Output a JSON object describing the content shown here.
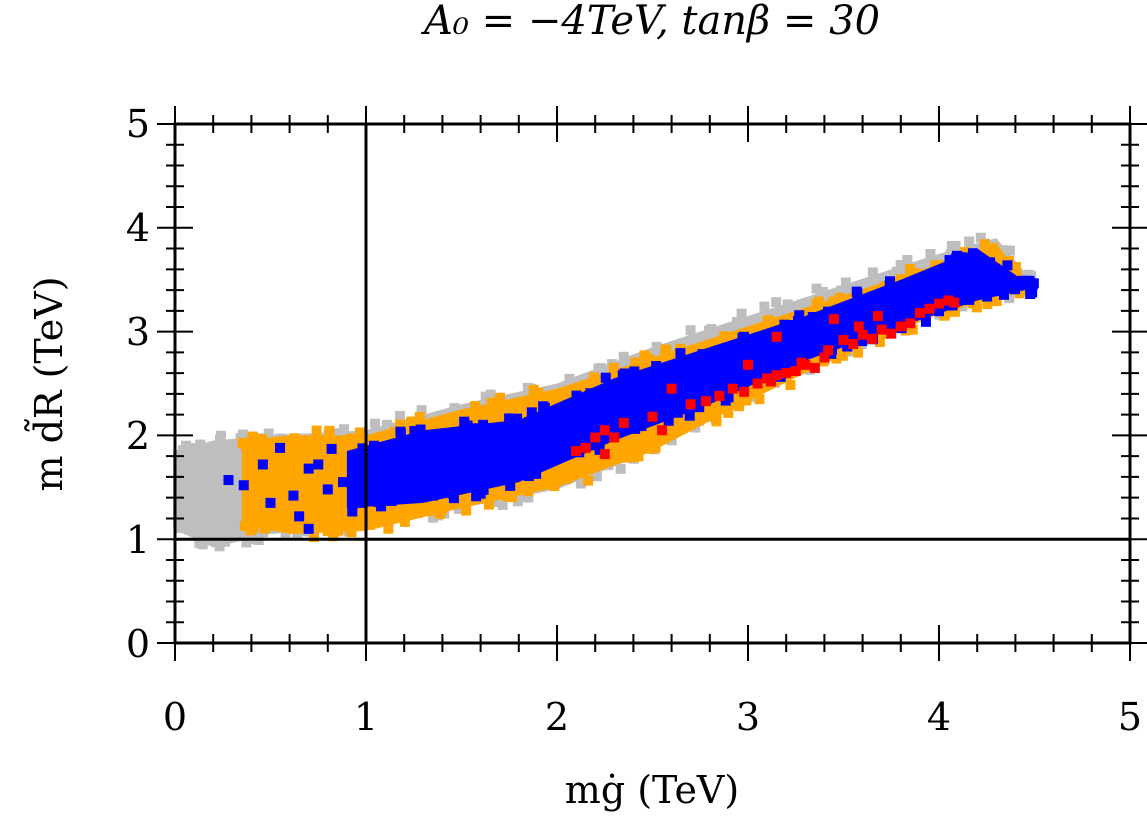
{
  "chart_data": {
    "type": "scatter",
    "title": "A₀ = −4TeV, tanβ = 30",
    "xlabel": "mġ (TeV)",
    "ylabel": "m d̃R (TeV)",
    "xlim": [
      0,
      5
    ],
    "ylim": [
      0,
      5
    ],
    "x_ticks": [
      "0",
      "1",
      "2",
      "3",
      "4",
      "5"
    ],
    "y_ticks": [
      "0",
      "1",
      "2",
      "3",
      "4",
      "5"
    ],
    "reference_lines": {
      "vertical_x": 1,
      "horizontal_y": 1
    },
    "series": [
      {
        "name": "all points",
        "color": "#bebebe",
        "kind": "region",
        "lower": [
          [
            -0.01,
            1.1
          ],
          [
            0.2,
            0.92
          ],
          [
            0.5,
            1.05
          ],
          [
            1.0,
            1.12
          ],
          [
            1.5,
            1.3
          ],
          [
            2.0,
            1.48
          ],
          [
            2.5,
            1.85
          ],
          [
            3.0,
            2.35
          ],
          [
            3.5,
            2.8
          ],
          [
            4.0,
            3.18
          ],
          [
            4.3,
            3.35
          ],
          [
            4.52,
            3.42
          ]
        ],
        "upper": [
          [
            -0.01,
            1.85
          ],
          [
            0.2,
            1.95
          ],
          [
            0.5,
            2.0
          ],
          [
            1.0,
            2.05
          ],
          [
            1.5,
            2.3
          ],
          [
            2.0,
            2.5
          ],
          [
            2.5,
            2.85
          ],
          [
            3.0,
            3.15
          ],
          [
            3.5,
            3.45
          ],
          [
            4.0,
            3.75
          ],
          [
            4.3,
            3.9
          ],
          [
            4.52,
            3.42
          ]
        ]
      },
      {
        "name": "orange points",
        "color": "#ffa500",
        "kind": "region",
        "lower": [
          [
            0.35,
            1.15
          ],
          [
            0.6,
            1.05
          ],
          [
            1.0,
            1.08
          ],
          [
            1.5,
            1.3
          ],
          [
            2.0,
            1.5
          ],
          [
            2.5,
            1.85
          ],
          [
            3.0,
            2.33
          ],
          [
            3.5,
            2.78
          ],
          [
            4.0,
            3.17
          ],
          [
            4.3,
            3.33
          ],
          [
            4.48,
            3.4
          ]
        ],
        "upper": [
          [
            0.35,
            1.95
          ],
          [
            0.6,
            2.0
          ],
          [
            1.0,
            2.0
          ],
          [
            1.5,
            2.25
          ],
          [
            2.0,
            2.45
          ],
          [
            2.5,
            2.75
          ],
          [
            3.0,
            3.05
          ],
          [
            3.5,
            3.35
          ],
          [
            4.0,
            3.65
          ],
          [
            4.3,
            3.85
          ],
          [
            4.48,
            3.4
          ]
        ]
      },
      {
        "name": "blue points",
        "color": "#0000ff",
        "kind": "region",
        "lower": [
          [
            0.9,
            1.3
          ],
          [
            1.3,
            1.35
          ],
          [
            1.8,
            1.55
          ],
          [
            2.3,
            1.95
          ],
          [
            2.8,
            2.3
          ],
          [
            3.3,
            2.72
          ],
          [
            3.8,
            3.05
          ],
          [
            4.2,
            3.3
          ],
          [
            4.5,
            3.42
          ]
        ],
        "upper": [
          [
            0.9,
            1.85
          ],
          [
            1.3,
            2.05
          ],
          [
            1.8,
            2.15
          ],
          [
            2.3,
            2.55
          ],
          [
            2.8,
            2.85
          ],
          [
            3.3,
            3.15
          ],
          [
            3.8,
            3.5
          ],
          [
            4.2,
            3.8
          ],
          [
            4.5,
            3.42
          ]
        ]
      },
      {
        "name": "blue scattered points",
        "color": "#0000ff",
        "kind": "points",
        "points": [
          [
            0.28,
            1.57
          ],
          [
            0.46,
            1.72
          ],
          [
            0.55,
            1.88
          ],
          [
            0.62,
            1.42
          ],
          [
            0.65,
            1.22
          ],
          [
            0.7,
            1.68
          ],
          [
            0.75,
            1.72
          ],
          [
            0.8,
            1.48
          ],
          [
            0.82,
            1.87
          ],
          [
            0.88,
            1.55
          ],
          [
            0.95,
            1.62
          ],
          [
            0.98,
            1.35
          ],
          [
            1.02,
            1.8
          ],
          [
            1.08,
            1.53
          ],
          [
            1.15,
            1.72
          ],
          [
            1.2,
            1.6
          ],
          [
            1.25,
            1.88
          ],
          [
            1.35,
            1.42
          ],
          [
            1.42,
            1.68
          ],
          [
            1.5,
            1.92
          ],
          [
            1.6,
            1.6
          ],
          [
            1.75,
            1.95
          ],
          [
            1.9,
            2.02
          ],
          [
            2.0,
            2.15
          ],
          [
            2.2,
            2.28
          ],
          [
            2.45,
            2.38
          ],
          [
            0.36,
            1.52
          ],
          [
            0.5,
            1.35
          ],
          [
            0.7,
            1.1
          ]
        ]
      },
      {
        "name": "red points",
        "color": "#ff0000",
        "kind": "points",
        "points": [
          [
            2.1,
            1.85
          ],
          [
            2.15,
            1.88
          ],
          [
            2.2,
            1.98
          ],
          [
            2.25,
            2.05
          ],
          [
            2.3,
            1.98
          ],
          [
            2.35,
            2.12
          ],
          [
            2.25,
            1.82
          ],
          [
            2.5,
            2.18
          ],
          [
            2.55,
            2.05
          ],
          [
            2.6,
            2.45
          ],
          [
            2.7,
            2.3
          ],
          [
            2.78,
            2.33
          ],
          [
            2.85,
            2.38
          ],
          [
            2.92,
            2.45
          ],
          [
            2.98,
            2.42
          ],
          [
            3.05,
            2.5
          ],
          [
            3.1,
            2.55
          ],
          [
            3.15,
            2.58
          ],
          [
            3.2,
            2.6
          ],
          [
            3.25,
            2.62
          ],
          [
            3.3,
            2.68
          ],
          [
            3.35,
            2.65
          ],
          [
            3.4,
            2.75
          ],
          [
            3.5,
            2.92
          ],
          [
            3.55,
            2.88
          ],
          [
            3.6,
            2.97
          ],
          [
            3.65,
            2.93
          ],
          [
            3.7,
            3.02
          ],
          [
            3.75,
            2.98
          ],
          [
            3.8,
            3.05
          ],
          [
            3.85,
            3.08
          ],
          [
            3.9,
            3.18
          ],
          [
            3.95,
            3.22
          ],
          [
            4.0,
            3.27
          ],
          [
            4.05,
            3.3
          ],
          [
            4.08,
            3.28
          ],
          [
            3.45,
            3.12
          ],
          [
            3.58,
            3.05
          ],
          [
            3.68,
            3.15
          ],
          [
            3.15,
            2.95
          ],
          [
            3.0,
            2.68
          ],
          [
            3.12,
            2.52
          ],
          [
            3.28,
            2.7
          ],
          [
            3.42,
            2.82
          ]
        ]
      }
    ]
  }
}
